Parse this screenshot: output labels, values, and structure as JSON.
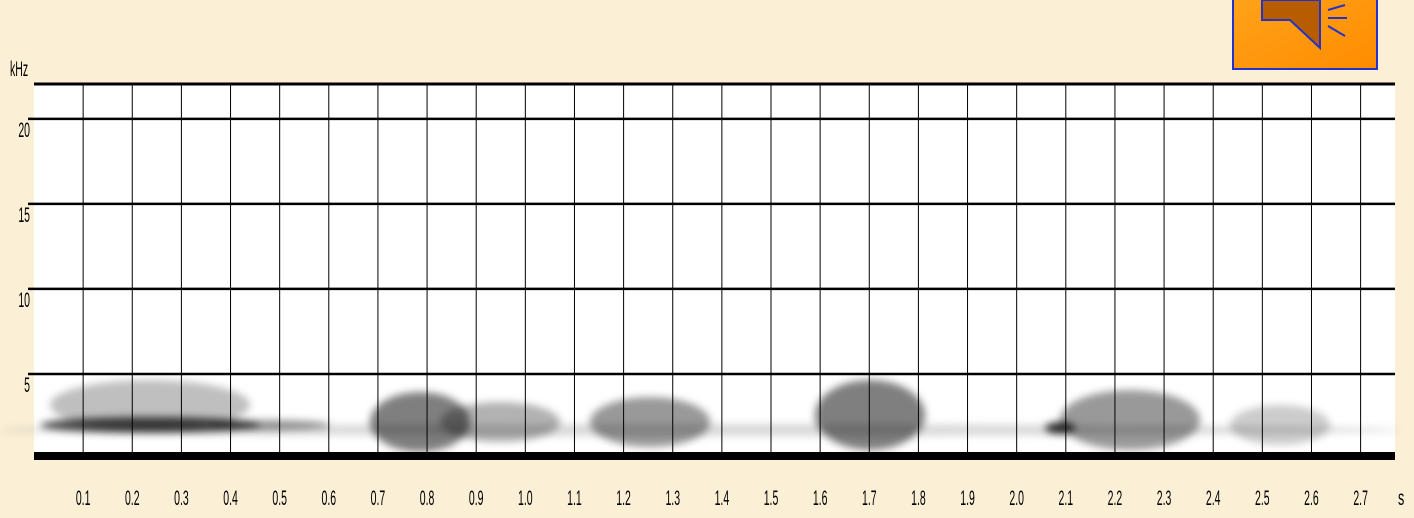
{
  "chart_data": {
    "type": "spectrogram",
    "y_label": "kHz",
    "x_label": "s",
    "xlim": [
      0,
      2.77
    ],
    "ylim": [
      0,
      22.05
    ],
    "yticks": [
      5,
      10,
      15,
      20
    ],
    "xticks": [
      0.1,
      0.2,
      0.3,
      0.4,
      0.5,
      0.6,
      0.7,
      0.8,
      0.9,
      {
        "value": 1,
        "label": "1.0"
      },
      1.1,
      1.2,
      1.3,
      1.4,
      1.5,
      1.6,
      1.7,
      1.8,
      1.9,
      {
        "value": 2,
        "label": "2.0"
      },
      2.1,
      2.2,
      2.3,
      2.4,
      2.5,
      2.6,
      2.7
    ],
    "grid": true
  }
}
